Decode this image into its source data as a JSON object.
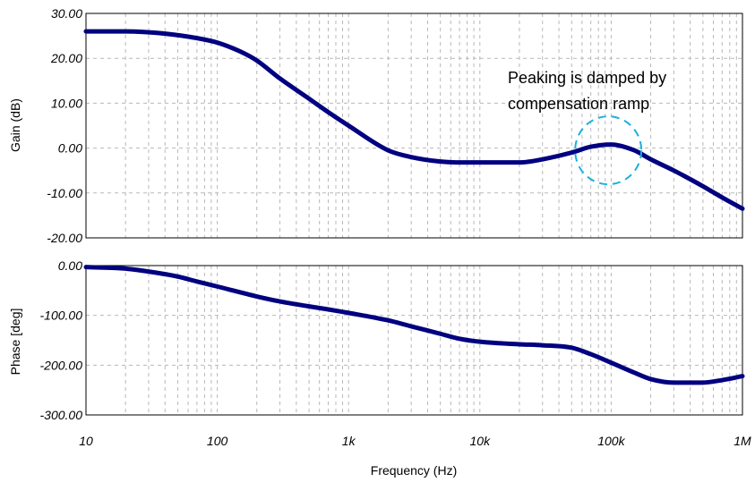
{
  "chart_data": [
    {
      "type": "line",
      "title": "",
      "xlabel": "",
      "ylabel": "Gain (dB)",
      "x_scale": "log",
      "xlim": [
        10,
        1000000
      ],
      "ylim": [
        -20,
        30
      ],
      "yticks": [
        "30.00",
        "20.00",
        "10.00",
        "0.00",
        "-10.00",
        "-20.00"
      ],
      "grid": true,
      "series_color": "#000080",
      "series": [
        {
          "x": [
            10,
            20,
            40,
            70,
            100,
            150,
            200,
            300,
            500,
            700,
            1000,
            2000,
            3000,
            5000,
            7000,
            10000,
            20000,
            30000,
            50000,
            70000,
            100000,
            150000,
            200000,
            300000,
            500000,
            700000,
            1000000
          ],
          "y": [
            26,
            26,
            25.5,
            24.5,
            23.5,
            21.5,
            19.5,
            15.5,
            11,
            8,
            5,
            -0.5,
            -2,
            -3,
            -3.2,
            -3.2,
            -3.2,
            -2.5,
            -1,
            0.3,
            0.8,
            -0.5,
            -2.5,
            -5,
            -8.5,
            -11,
            -13.5
          ]
        }
      ],
      "annotation": {
        "text_lines": [
          "Peaking is damped by",
          "compensation ramp"
        ],
        "marker_x": 95000,
        "marker_y": -0.5,
        "marker_color": "#1ab0e0"
      }
    },
    {
      "type": "line",
      "title": "",
      "xlabel": "Frequency (Hz)",
      "ylabel": "Phase [deg]",
      "x_scale": "log",
      "xlim": [
        10,
        1000000
      ],
      "ylim": [
        -300,
        0
      ],
      "yticks": [
        "0.00",
        "-100.00",
        "-200.00",
        "-300.00"
      ],
      "xticks": [
        "10",
        "100",
        "1k",
        "10k",
        "100k",
        "1M"
      ],
      "grid": true,
      "series_color": "#000080",
      "series": [
        {
          "x": [
            10,
            20,
            30,
            50,
            70,
            100,
            200,
            300,
            500,
            700,
            1000,
            2000,
            3000,
            5000,
            7000,
            10000,
            20000,
            30000,
            50000,
            70000,
            100000,
            150000,
            200000,
            300000,
            500000,
            700000,
            1000000
          ],
          "y": [
            -3,
            -6,
            -12,
            -22,
            -32,
            -42,
            -62,
            -72,
            -82,
            -88,
            -95,
            -110,
            -122,
            -137,
            -147,
            -153,
            -158,
            -160,
            -165,
            -178,
            -195,
            -215,
            -228,
            -235,
            -235,
            -230,
            -222
          ]
        }
      ]
    }
  ]
}
